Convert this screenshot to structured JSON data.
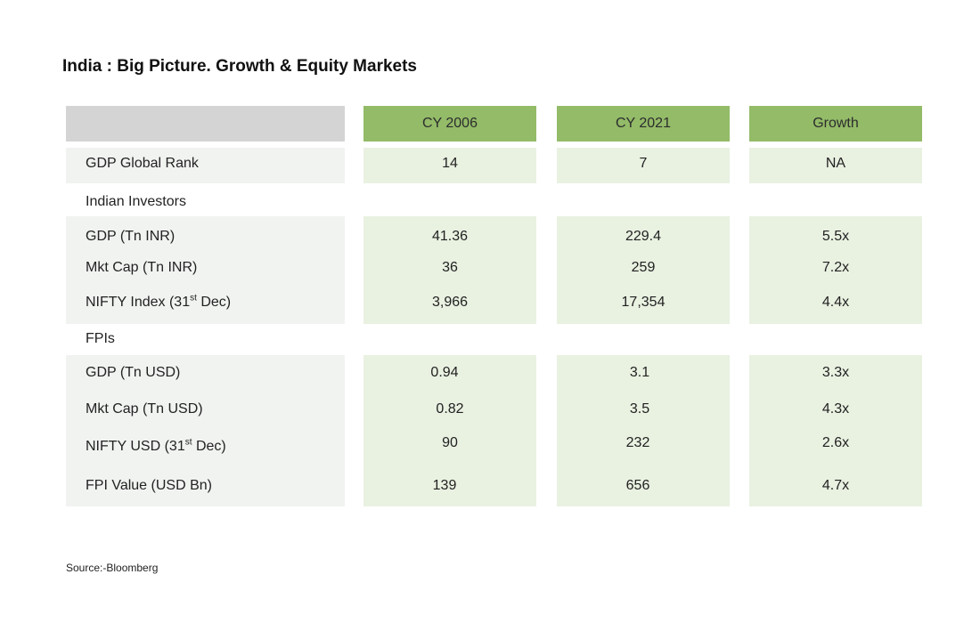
{
  "title": "India : Big Picture. Growth & Equity Markets",
  "columns": [
    "CY 2006",
    "CY 2021",
    "Growth"
  ],
  "rows": {
    "gdp_rank": {
      "label": "GDP Global Rank",
      "values": [
        "14",
        "7",
        "NA"
      ]
    },
    "gdp_inr": {
      "label": "GDP (Tn INR)",
      "values": [
        "41.36",
        "229.4",
        "5.5x"
      ]
    },
    "mktcap_inr": {
      "label": "Mkt Cap (Tn INR)",
      "values": [
        "36",
        "259",
        "7.2x"
      ]
    },
    "nifty_index": {
      "label_pre": "NIFTY Index (31",
      "label_sup": "st",
      "label_post": " Dec)",
      "values": [
        "3,966",
        "17,354",
        "4.4x"
      ]
    },
    "gdp_usd": {
      "label": "GDP (Tn USD)",
      "values": [
        "0.94",
        "3.1",
        "3.3x"
      ]
    },
    "mktcap_usd": {
      "label": "Mkt Cap (Tn USD)",
      "values": [
        "0.82",
        "3.5",
        "4.3x"
      ]
    },
    "nifty_usd": {
      "label_pre": "NIFTY USD (31",
      "label_sup": "st",
      "label_post": " Dec)",
      "values": [
        "90",
        "232",
        "2.6x"
      ]
    },
    "fpi_value": {
      "label": "FPI Value (USD Bn)",
      "values": [
        "139",
        "656",
        "4.7x"
      ]
    }
  },
  "sections": {
    "indian_investors": "Indian Investors",
    "fpis": "FPIs"
  },
  "source": "Source:-Bloomberg"
}
